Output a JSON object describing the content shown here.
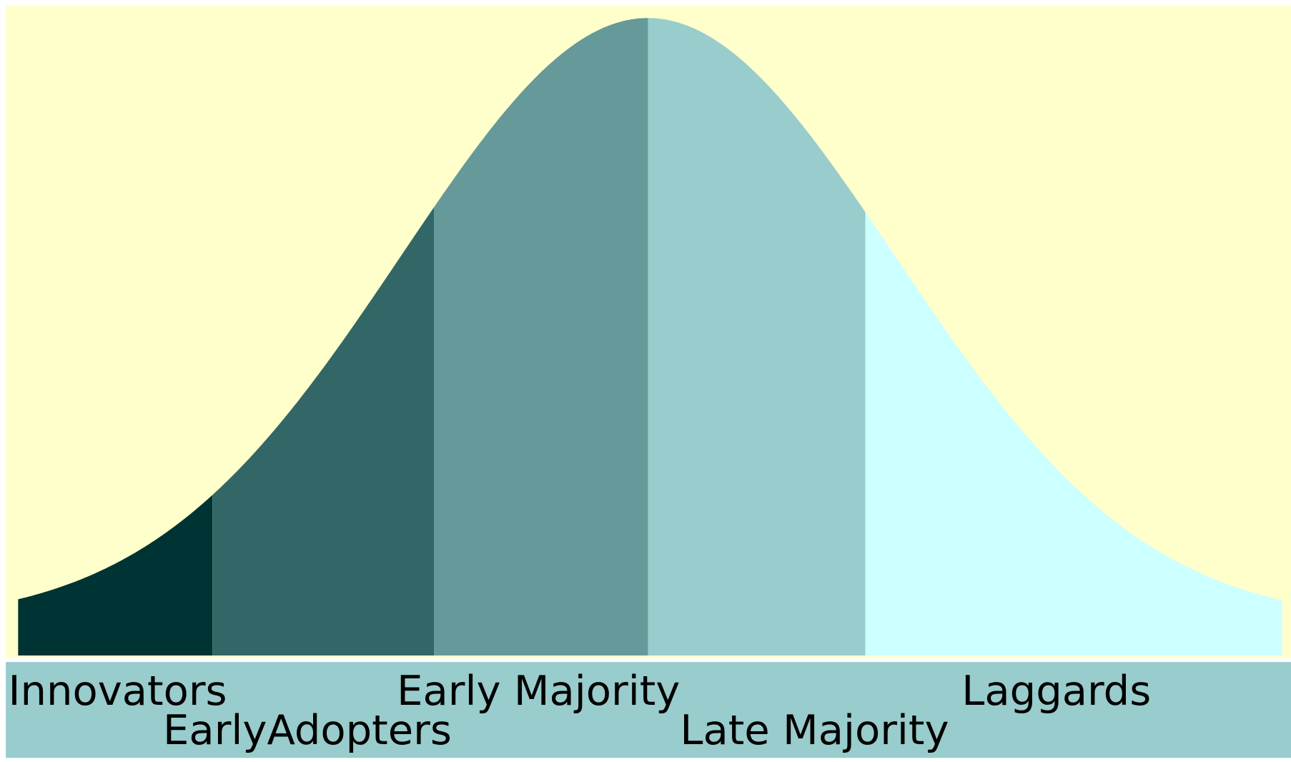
{
  "segments": [
    {
      "label": "Innovators"
    },
    {
      "label": "EarlyAdopters"
    },
    {
      "label": "Early Majority"
    },
    {
      "label": "Late Majority"
    },
    {
      "label": "Laggards"
    }
  ]
}
